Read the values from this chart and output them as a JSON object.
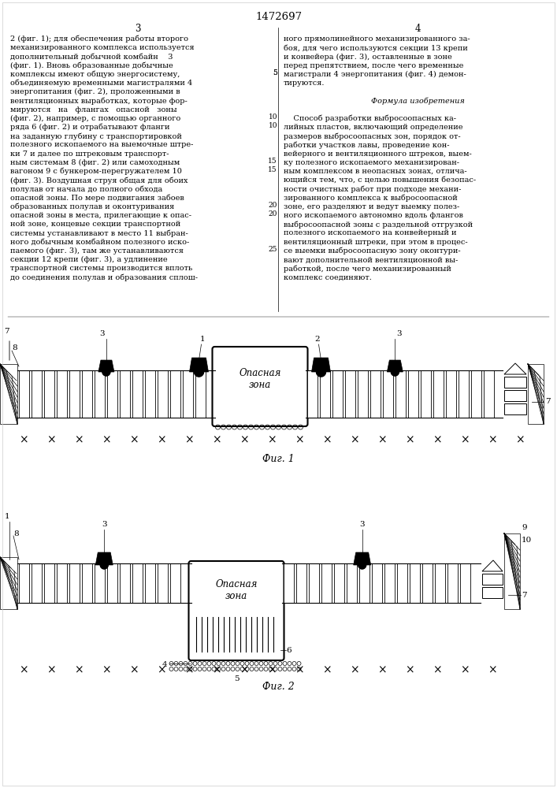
{
  "page_number": "1472697",
  "col_left_num": "3",
  "col_right_num": "4",
  "fig1_caption": "Фиг. 1",
  "fig2_caption": "Фиг. 2",
  "opasnaya_zona": "Опасная\nзона",
  "formula_title": "Формула изобретения",
  "bg_color": "#ffffff",
  "line_color": "#000000"
}
